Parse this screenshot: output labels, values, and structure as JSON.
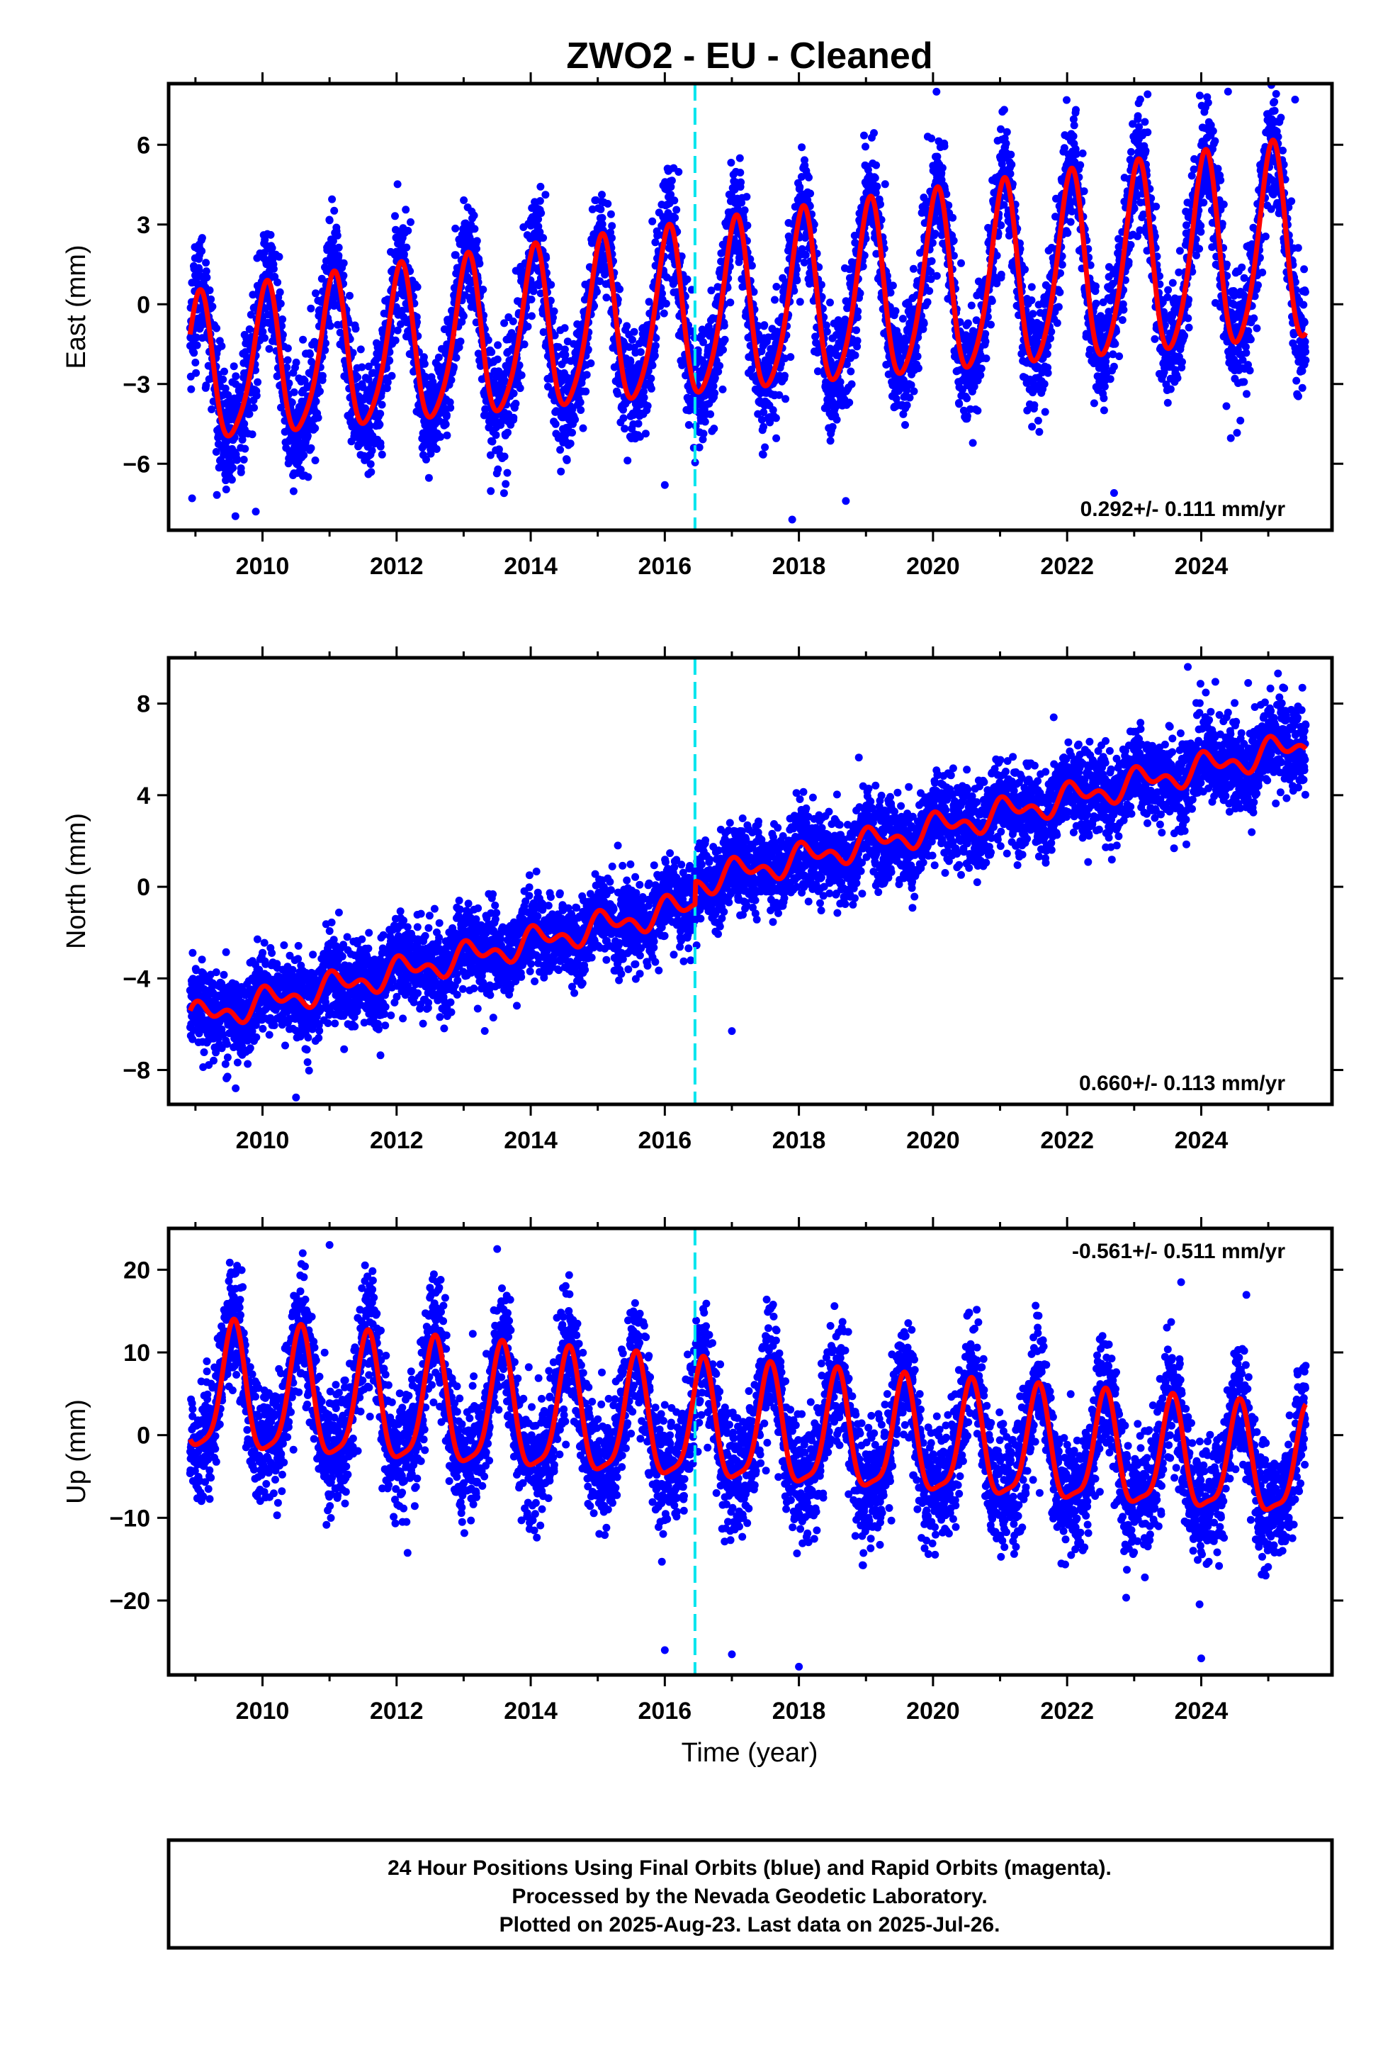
{
  "title": "ZWO2  - EU - Cleaned",
  "xlabel": "Time (year)",
  "caption": [
    "24 Hour Positions Using Final Orbits (blue) and Rapid Orbits (magenta).",
    "Processed by the Nevada Geodetic Laboratory.",
    "Plotted on 2025-Aug-23. Last data on 2025-Jul-26."
  ],
  "colors": {
    "points": "#0000ff",
    "model": "#ff0000",
    "event_line": "#00e5ee",
    "frame": "#000000"
  },
  "chart_data": [
    {
      "type": "scatter",
      "name": "east",
      "ylabel": "East (mm)",
      "rate_label": "0.292+/- 0.111 mm/yr",
      "rate_position": "bottom-right",
      "xlim": [
        2008.6,
        2025.95
      ],
      "ylim": [
        -8.5,
        8.3
      ],
      "xticks": [
        2010,
        2012,
        2014,
        2016,
        2018,
        2020,
        2022,
        2024
      ],
      "xtick_labels": [
        "2010",
        "2012",
        "2014",
        "2016",
        "2018",
        "2020",
        "2022",
        "2024"
      ],
      "yticks": [
        -6,
        -3,
        0,
        3,
        6
      ],
      "ytick_labels": [
        "−6",
        "−3",
        "0",
        "3",
        "6"
      ],
      "event_line_x": 2016.45,
      "x_range": [
        2008.92,
        2025.56
      ],
      "model": {
        "offset": -0.3,
        "rate": 0.292,
        "t_ref": 2017.0,
        "annual_amp": 3.2,
        "annual_amp_trend": 0.06,
        "annual_phase": 1.25,
        "semiannual_amp": 0.5,
        "semiannual_phase": 0.3,
        "step_time": 2016.45,
        "step_size": 0.0
      },
      "scatter_noise": 1.1,
      "scatter_outliers": [
        [
          2008.95,
          -7.3
        ],
        [
          2009.9,
          -7.8
        ],
        [
          2017.9,
          -8.1
        ],
        [
          2018.7,
          -7.4
        ],
        [
          2022.7,
          -7.1
        ],
        [
          2023.2,
          7.9
        ],
        [
          2024.4,
          8.0
        ],
        [
          2016.0,
          -6.8
        ],
        [
          2025.4,
          7.7
        ]
      ]
    },
    {
      "type": "scatter",
      "name": "north",
      "ylabel": "North (mm)",
      "rate_label": "0.660+/- 0.113 mm/yr",
      "rate_position": "bottom-right",
      "xlim": [
        2008.6,
        2025.95
      ],
      "ylim": [
        -9.5,
        10.0
      ],
      "xticks": [
        2010,
        2012,
        2014,
        2016,
        2018,
        2020,
        2022,
        2024
      ],
      "xtick_labels": [
        "2010",
        "2012",
        "2014",
        "2016",
        "2018",
        "2020",
        "2022",
        "2024"
      ],
      "yticks": [
        -8,
        -4,
        0,
        4,
        8
      ],
      "ytick_labels": [
        "−8",
        "−4",
        "0",
        "4",
        "8"
      ],
      "event_line_x": 2016.45,
      "x_range": [
        2008.92,
        2025.56
      ],
      "model": {
        "offset": -0.45,
        "rate": 0.66,
        "t_ref": 2017.0,
        "annual_amp": 0.45,
        "annual_amp_trend": 0.0,
        "annual_phase": 0.9,
        "semiannual_amp": 0.35,
        "semiannual_phase": 1.6,
        "step_time": 2016.45,
        "step_size": 1.0
      },
      "scatter_noise": 0.9,
      "scatter_outliers": [
        [
          2010.5,
          -9.2
        ],
        [
          2009.6,
          -8.8
        ],
        [
          2017.0,
          -6.3
        ],
        [
          2023.8,
          9.6
        ],
        [
          2024.7,
          8.9
        ],
        [
          2021.8,
          7.4
        ],
        [
          2015.3,
          1.8
        ]
      ]
    },
    {
      "type": "scatter",
      "name": "up",
      "ylabel": "Up (mm)",
      "rate_label": "-0.561+/- 0.511 mm/yr",
      "rate_position": "top-right",
      "xlim": [
        2008.6,
        2025.95
      ],
      "ylim": [
        -29.0,
        25.0
      ],
      "xticks": [
        2010,
        2012,
        2014,
        2016,
        2018,
        2020,
        2022,
        2024
      ],
      "xtick_labels": [
        "2010",
        "2012",
        "2014",
        "2016",
        "2018",
        "2020",
        "2022",
        "2024"
      ],
      "yticks": [
        -20,
        -10,
        0,
        10,
        20
      ],
      "ytick_labels": [
        "−20",
        "−10",
        "0",
        "10",
        "20"
      ],
      "event_line_x": 2016.45,
      "x_range": [
        2008.92,
        2025.56
      ],
      "model": {
        "offset": 0.5,
        "rate": -0.561,
        "t_ref": 2017.0,
        "annual_amp": 7.0,
        "annual_amp_trend": -0.08,
        "annual_phase": 4.3,
        "semiannual_amp": 1.8,
        "semiannual_phase": 0.5,
        "step_time": 2016.45,
        "step_size": 0.0
      },
      "scatter_noise": 3.6,
      "scatter_outliers": [
        [
          2011.0,
          23.0
        ],
        [
          2013.5,
          22.5
        ],
        [
          2016.0,
          -26.0
        ],
        [
          2017.0,
          -26.5
        ],
        [
          2018.0,
          -28.0
        ],
        [
          2024.0,
          -27.0
        ],
        [
          2023.7,
          18.5
        ],
        [
          2010.6,
          22.0
        ]
      ]
    }
  ]
}
